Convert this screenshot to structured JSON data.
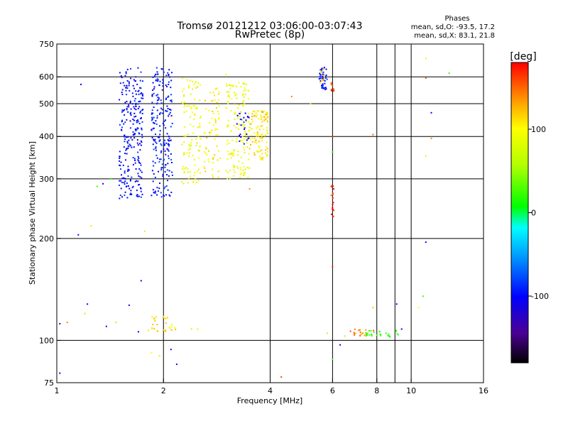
{
  "chart_data": {
    "type": "scatter",
    "title": "Tromsø 20121212 03:06:00-03:07:43",
    "subtitle": "RwPretec (8p)",
    "xlabel": "Frequency [MHz]",
    "ylabel": "Stationary phase Virtual Height [km]",
    "x_scale": "log",
    "y_scale": "log",
    "xlim": [
      1,
      16
    ],
    "ylim": [
      75,
      750
    ],
    "x_ticks": [
      1,
      2,
      4,
      6,
      8,
      10,
      16
    ],
    "x_tick_labels": [
      "1",
      "2",
      "4",
      "6",
      "8",
      "10",
      "16"
    ],
    "x_grid": [
      2,
      4,
      6,
      8,
      9,
      10
    ],
    "y_ticks": [
      75,
      100,
      200,
      300,
      400,
      500,
      600,
      750
    ],
    "y_tick_labels": [
      "75",
      "100",
      "200",
      "300",
      "400",
      "500",
      "600",
      "750"
    ],
    "y_grid": [
      100,
      200,
      300,
      400,
      500,
      600
    ],
    "grid": true,
    "stats": {
      "heading": "Phases",
      "line_o": "mean, sd,O: -93.5, 17.2",
      "line_x": "mean, sd,X:  83.1, 21.8"
    },
    "colorbar": {
      "label": "[deg]",
      "range": [
        -180,
        180
      ],
      "ticks": [
        100,
        0,
        -100
      ],
      "tick_labels": [
        "100",
        "0",
        "-100"
      ],
      "placement": "right"
    },
    "clusters": [
      {
        "x": [
          1.5,
          1.75
        ],
        "y": [
          262,
          640
        ],
        "phase": -100,
        "n": 260
      },
      {
        "x": [
          1.85,
          2.12
        ],
        "y": [
          265,
          640
        ],
        "phase": -95,
        "n": 220
      },
      {
        "x": [
          2.25,
          2.55
        ],
        "y": [
          290,
          600
        ],
        "phase": 95,
        "n": 110
      },
      {
        "x": [
          2.6,
          2.9
        ],
        "y": [
          300,
          560
        ],
        "phase": 105,
        "n": 70
      },
      {
        "x": [
          3.0,
          3.5
        ],
        "y": [
          300,
          580
        ],
        "phase": 90,
        "n": 150
      },
      {
        "x": [
          3.2,
          3.5
        ],
        "y": [
          380,
          470
        ],
        "phase": -100,
        "n": 25
      },
      {
        "x": [
          3.5,
          3.95
        ],
        "y": [
          340,
          480
        ],
        "phase": 110,
        "n": 110
      },
      {
        "x": [
          5.5,
          5.8
        ],
        "y": [
          550,
          640
        ],
        "phase": -95,
        "n": 45
      },
      {
        "x": [
          5.5,
          5.7
        ],
        "y": [
          560,
          640
        ],
        "phase": 120,
        "n": 10
      },
      {
        "x": [
          5.95,
          6.05
        ],
        "y": [
          230,
          290
        ],
        "phase": 170,
        "n": 18
      },
      {
        "x": [
          5.95,
          6.05
        ],
        "y": [
          540,
          580
        ],
        "phase": 170,
        "n": 8
      },
      {
        "x": [
          1.8,
          2.2
        ],
        "y": [
          105,
          118
        ],
        "phase": 110,
        "n": 30
      },
      {
        "x": [
          6.7,
          8.0
        ],
        "y": [
          103,
          108
        ],
        "phase": 140,
        "n": 18
      },
      {
        "x": [
          7.4,
          9.3
        ],
        "y": [
          102,
          107
        ],
        "phase": 15,
        "n": 25
      }
    ],
    "points": [
      {
        "x": 1.02,
        "y": 80,
        "phase": -100
      },
      {
        "x": 1.02,
        "y": 112,
        "phase": -110
      },
      {
        "x": 1.07,
        "y": 113,
        "phase": 140
      },
      {
        "x": 1.15,
        "y": 205,
        "phase": -100
      },
      {
        "x": 1.17,
        "y": 570,
        "phase": -100
      },
      {
        "x": 1.2,
        "y": 120,
        "phase": 60
      },
      {
        "x": 1.22,
        "y": 128,
        "phase": -110
      },
      {
        "x": 1.25,
        "y": 218,
        "phase": 110
      },
      {
        "x": 1.3,
        "y": 285,
        "phase": 20
      },
      {
        "x": 1.35,
        "y": 290,
        "phase": -100
      },
      {
        "x": 1.38,
        "y": 110,
        "phase": -110
      },
      {
        "x": 1.42,
        "y": 300,
        "phase": 10
      },
      {
        "x": 1.47,
        "y": 113,
        "phase": 60
      },
      {
        "x": 1.6,
        "y": 127,
        "phase": -110
      },
      {
        "x": 1.7,
        "y": 106,
        "phase": -100
      },
      {
        "x": 1.73,
        "y": 150,
        "phase": -100
      },
      {
        "x": 1.77,
        "y": 210,
        "phase": 110
      },
      {
        "x": 1.85,
        "y": 92,
        "phase": 100
      },
      {
        "x": 1.95,
        "y": 90,
        "phase": 110
      },
      {
        "x": 2.1,
        "y": 94,
        "phase": -100
      },
      {
        "x": 2.18,
        "y": 85,
        "phase": -100
      },
      {
        "x": 2.4,
        "y": 108,
        "phase": 110
      },
      {
        "x": 2.5,
        "y": 108,
        "phase": 110
      },
      {
        "x": 3.0,
        "y": 610,
        "phase": 90
      },
      {
        "x": 3.5,
        "y": 280,
        "phase": 140
      },
      {
        "x": 3.9,
        "y": 470,
        "phase": 100
      },
      {
        "x": 4.3,
        "y": 78,
        "phase": 160
      },
      {
        "x": 4.6,
        "y": 525,
        "phase": 140
      },
      {
        "x": 5.2,
        "y": 500,
        "phase": 110
      },
      {
        "x": 5.8,
        "y": 105,
        "phase": 110
      },
      {
        "x": 6.0,
        "y": 165,
        "phase": 170
      },
      {
        "x": 6.0,
        "y": 400,
        "phase": 170
      },
      {
        "x": 6.0,
        "y": 88,
        "phase": 30
      },
      {
        "x": 6.0,
        "y": 360,
        "phase": 0
      },
      {
        "x": 6.3,
        "y": 97,
        "phase": -100
      },
      {
        "x": 6.5,
        "y": 103,
        "phase": 60
      },
      {
        "x": 7.8,
        "y": 125,
        "phase": 120
      },
      {
        "x": 7.8,
        "y": 405,
        "phase": 150
      },
      {
        "x": 9.1,
        "y": 128,
        "phase": -100
      },
      {
        "x": 9.4,
        "y": 108,
        "phase": -110
      },
      {
        "x": 10.5,
        "y": 125,
        "phase": 100
      },
      {
        "x": 10.8,
        "y": 135,
        "phase": 20
      },
      {
        "x": 11.0,
        "y": 195,
        "phase": -100
      },
      {
        "x": 11.0,
        "y": 595,
        "phase": 150
      },
      {
        "x": 11.0,
        "y": 680,
        "phase": 110
      },
      {
        "x": 11.0,
        "y": 350,
        "phase": 110
      },
      {
        "x": 11.4,
        "y": 470,
        "phase": -100
      },
      {
        "x": 11.4,
        "y": 395,
        "phase": 140
      },
      {
        "x": 12.8,
        "y": 615,
        "phase": 20
      }
    ]
  }
}
